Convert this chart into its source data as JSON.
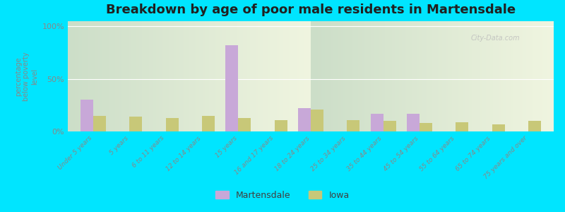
{
  "title": "Breakdown by age of poor male residents in Martensdale",
  "ylabel": "percentage\nbelow poverty\nlevel",
  "categories": [
    "Under 5 years",
    "5 years",
    "6 to 11 years",
    "12 to 14 years",
    "15 years",
    "16 and 17 years",
    "18 to 24 years",
    "25 to 34 years",
    "35 to 44 years",
    "45 to 54 years",
    "55 to 64 years",
    "65 to 74 years",
    "75 years and over"
  ],
  "martensdale": [
    30,
    0,
    0,
    0,
    82,
    0,
    22,
    0,
    17,
    17,
    0,
    0,
    0
  ],
  "iowa": [
    15,
    14,
    13,
    15,
    13,
    11,
    21,
    11,
    10,
    8,
    9,
    7,
    10
  ],
  "martensdale_color": "#c8a8d8",
  "iowa_color": "#c8c878",
  "outer_bg": "#00e5ff",
  "grad_top": "#ccdec8",
  "grad_bottom": "#f0f5e0",
  "ylim": [
    0,
    105
  ],
  "yticks": [
    0,
    50,
    100
  ],
  "ytick_labels": [
    "0%",
    "50%",
    "100%"
  ],
  "title_fontsize": 13,
  "title_fontweight": "bold",
  "bar_width": 0.35,
  "legend_martensdale": "Martensdale",
  "legend_iowa": "Iowa"
}
